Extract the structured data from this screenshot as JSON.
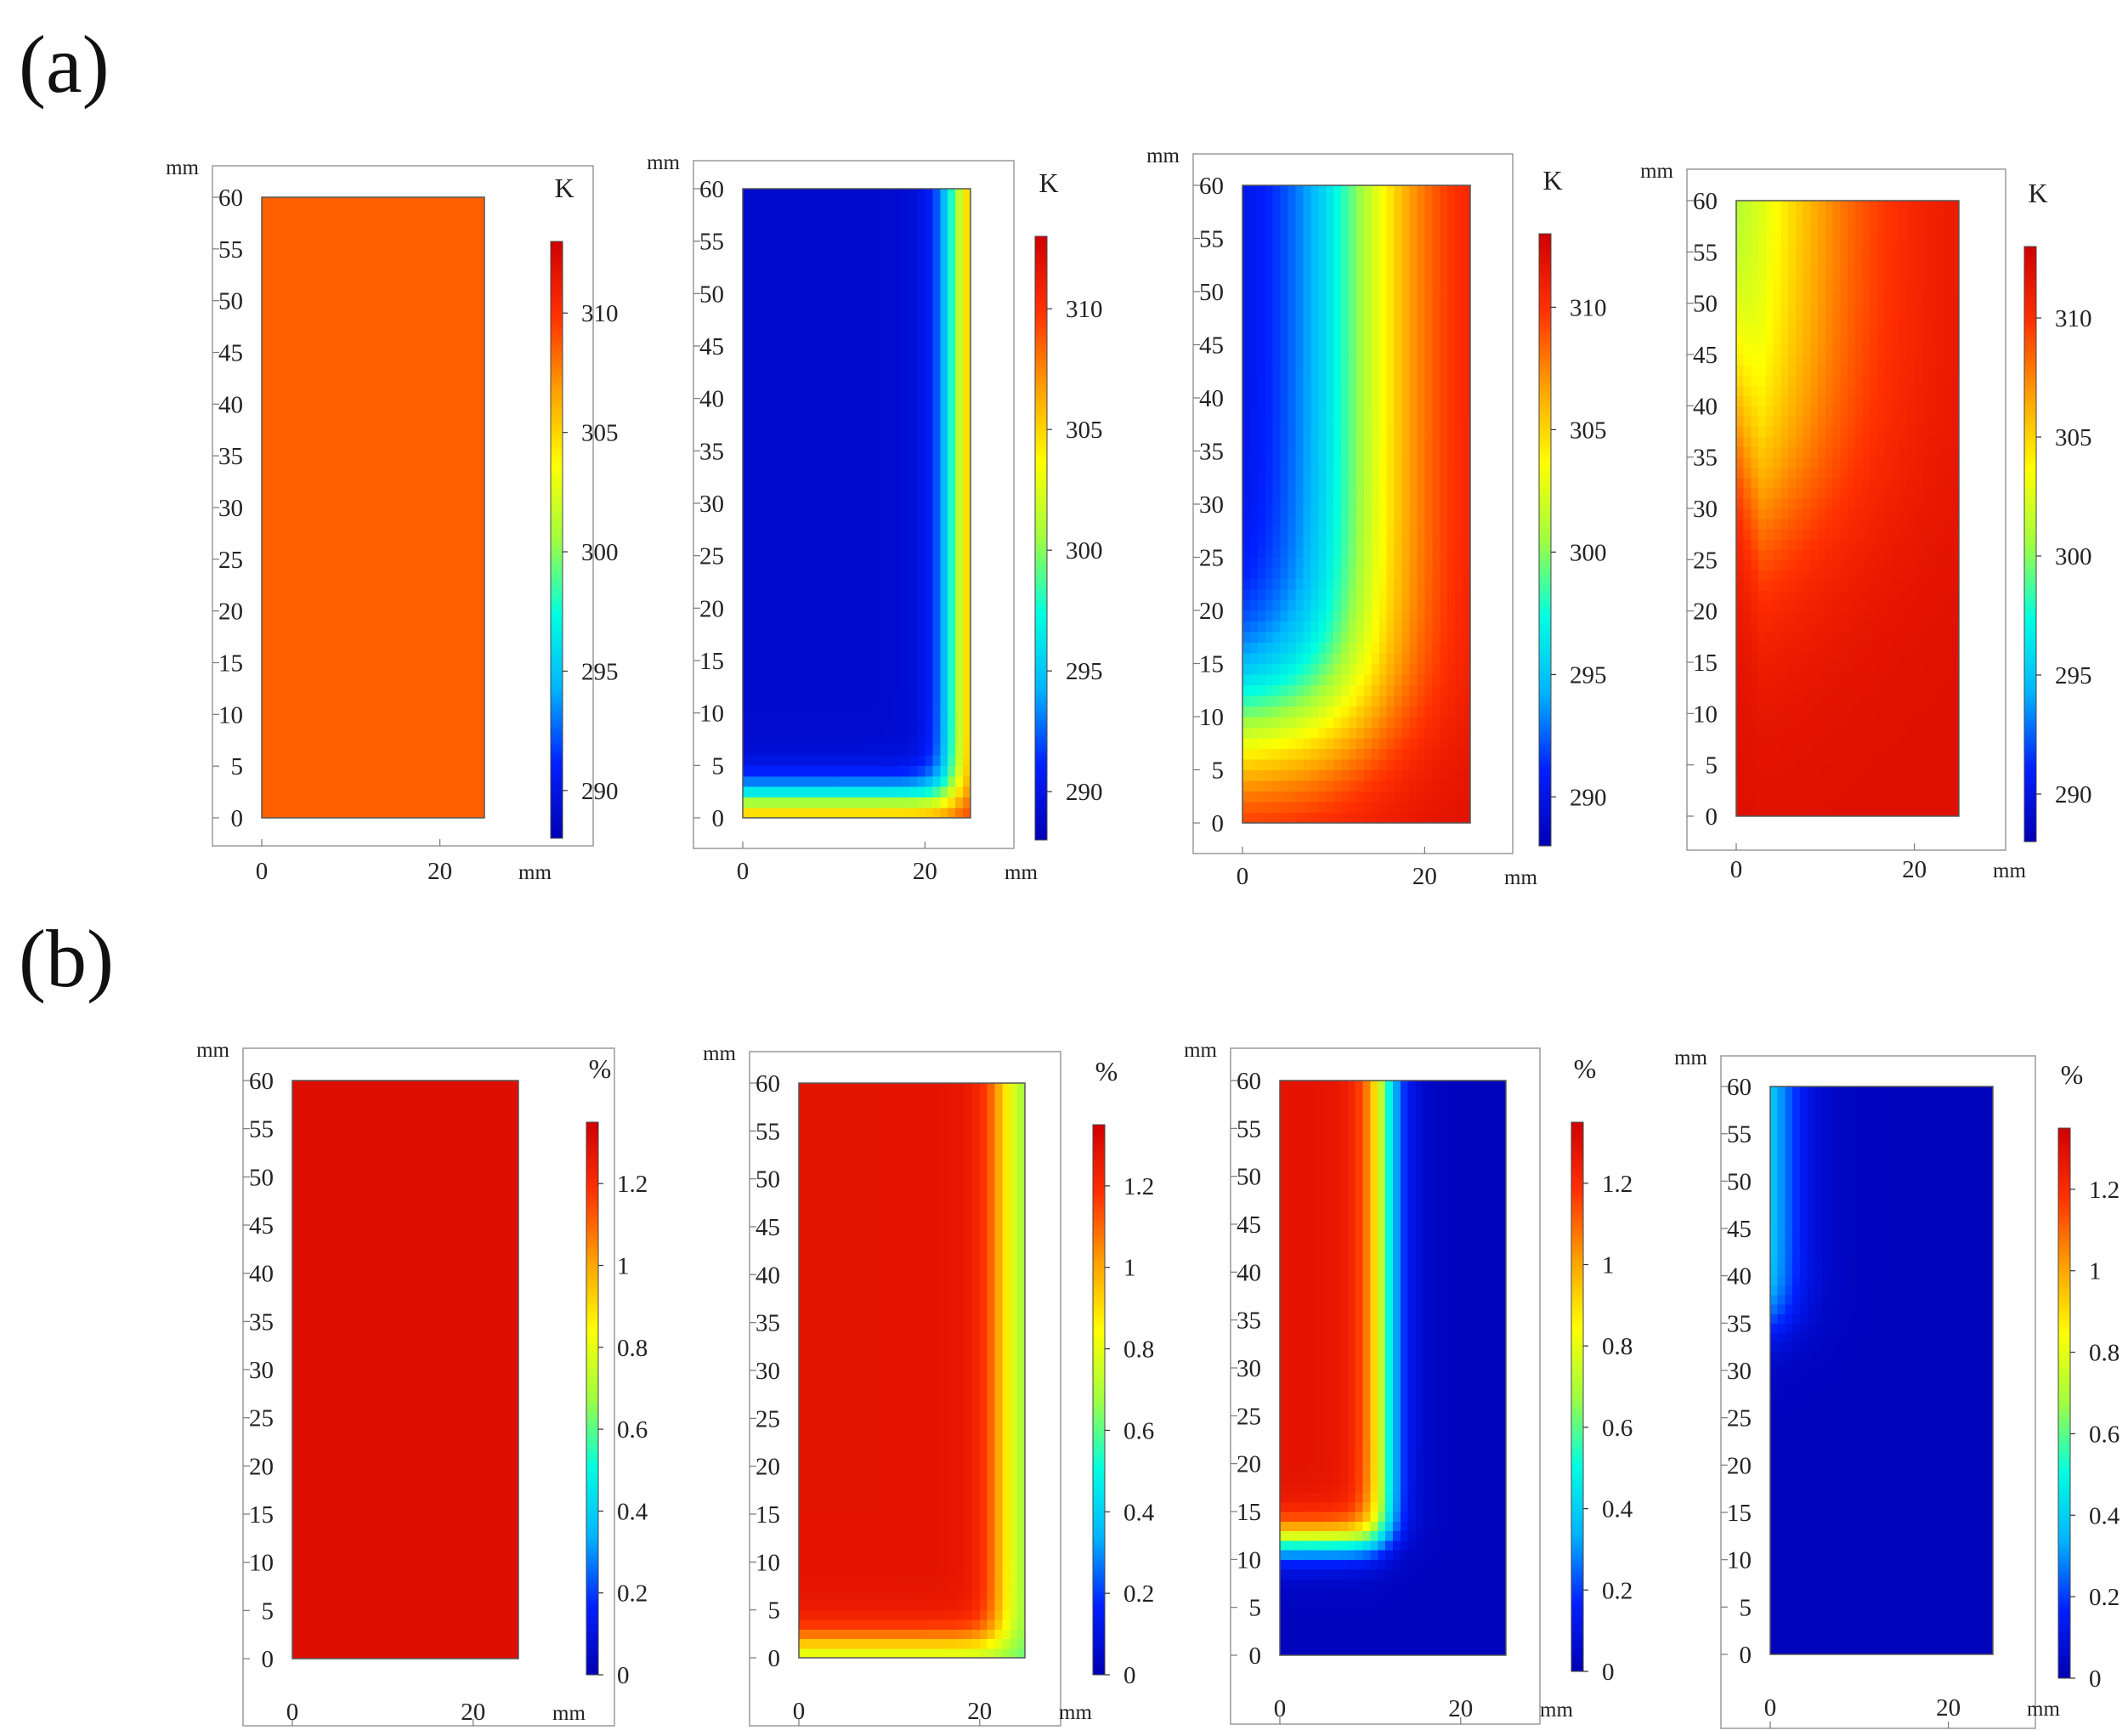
{
  "panel_labels": {
    "a": "(a)",
    "b": "(b)"
  },
  "colormap": [
    "#0000b4",
    "#0020ff",
    "#00b4ff",
    "#00ffe0",
    "#a0ff40",
    "#ffff00",
    "#ffa000",
    "#ff3000",
    "#d00000"
  ],
  "chart_data": [
    {
      "type": "heatmap",
      "row": "a",
      "quantity": "temperature",
      "x_unit": "mm",
      "y_unit": "mm",
      "colorbar_unit": "K",
      "xlim": [
        0,
        25
      ],
      "ylim": [
        0,
        60
      ],
      "x_ticks": [
        "0",
        "20"
      ],
      "y_ticks": [
        "0",
        "5",
        "10",
        "15",
        "20",
        "25",
        "30",
        "35",
        "40",
        "45",
        "50",
        "55",
        "60"
      ],
      "colorbar_range": [
        288,
        313
      ],
      "colorbar_ticks": [
        290,
        295,
        300,
        305,
        310
      ],
      "field": {
        "mode": "uniform",
        "value": 308.5
      }
    },
    {
      "type": "heatmap",
      "row": "a",
      "quantity": "temperature",
      "x_unit": "mm",
      "y_unit": "mm",
      "colorbar_unit": "K",
      "xlim": [
        0,
        25
      ],
      "ylim": [
        0,
        60
      ],
      "x_ticks": [
        "0",
        "20"
      ],
      "y_ticks": [
        "0",
        "5",
        "10",
        "15",
        "20",
        "25",
        "30",
        "35",
        "40",
        "45",
        "50",
        "55",
        "60"
      ],
      "colorbar_range": [
        288,
        313
      ],
      "colorbar_ticks": [
        290,
        295,
        300,
        305,
        310
      ],
      "field": {
        "mode": "front",
        "interior": 289,
        "boundary": 310,
        "front_x": 23.3,
        "front_y": 1.8,
        "width": 1.2,
        "rise": 0
      }
    },
    {
      "type": "heatmap",
      "row": "a",
      "quantity": "temperature",
      "x_unit": "mm",
      "y_unit": "mm",
      "colorbar_unit": "K",
      "xlim": [
        0,
        25
      ],
      "ylim": [
        0,
        60
      ],
      "x_ticks": [
        "0",
        "20"
      ],
      "y_ticks": [
        "0",
        "5",
        "10",
        "15",
        "20",
        "25",
        "30",
        "35",
        "40",
        "45",
        "50",
        "55",
        "60"
      ],
      "colorbar_range": [
        288,
        313
      ],
      "colorbar_ticks": [
        290,
        295,
        300,
        305,
        310
      ],
      "field": {
        "mode": "front",
        "interior": 289,
        "boundary": 312,
        "front_x": 13,
        "front_y": 9,
        "width": 4.5,
        "rise": 0
      }
    },
    {
      "type": "heatmap",
      "row": "a",
      "quantity": "temperature",
      "x_unit": "mm",
      "y_unit": "mm",
      "colorbar_unit": "K",
      "xlim": [
        0,
        25
      ],
      "ylim": [
        0,
        60
      ],
      "x_ticks": [
        "0",
        "20"
      ],
      "y_ticks": [
        "0",
        "5",
        "10",
        "15",
        "20",
        "25",
        "30",
        "35",
        "40",
        "45",
        "50",
        "55",
        "60"
      ],
      "colorbar_range": [
        288,
        313
      ],
      "colorbar_ticks": [
        290,
        295,
        300,
        305,
        310
      ],
      "field": {
        "mode": "front",
        "interior": 293,
        "boundary": 312,
        "front_x": 3,
        "front_y": 30,
        "width": 7,
        "rise": 10
      }
    },
    {
      "type": "heatmap",
      "row": "b",
      "quantity": "percent",
      "x_unit": "mm",
      "y_unit": "mm",
      "colorbar_unit": "%",
      "xlim": [
        0,
        25
      ],
      "ylim": [
        0,
        60
      ],
      "x_ticks": [
        "0",
        "20"
      ],
      "y_ticks": [
        "0",
        "5",
        "10",
        "15",
        "20",
        "25",
        "30",
        "35",
        "40",
        "45",
        "50",
        "55",
        "60"
      ],
      "colorbar_range": [
        0,
        1.35
      ],
      "colorbar_ticks": [
        0,
        0.2,
        0.4,
        0.6,
        0.8,
        1,
        1.2
      ],
      "field": {
        "mode": "uniform",
        "value": 1.3
      }
    },
    {
      "type": "heatmap",
      "row": "b",
      "quantity": "percent",
      "x_unit": "mm",
      "y_unit": "mm",
      "colorbar_unit": "%",
      "xlim": [
        0,
        25
      ],
      "ylim": [
        0,
        60
      ],
      "x_ticks": [
        "0",
        "20"
      ],
      "y_ticks": [
        "0",
        "5",
        "10",
        "15",
        "20",
        "25",
        "30",
        "35",
        "40",
        "45",
        "50",
        "55",
        "60"
      ],
      "colorbar_range": [
        0,
        1.35
      ],
      "colorbar_ticks": [
        0,
        0.2,
        0.4,
        0.6,
        0.8,
        1,
        1.2
      ],
      "field": {
        "mode": "front",
        "interior": 1.28,
        "boundary": 0.6,
        "front_x": 22.5,
        "front_y": 1.5,
        "width": 1.2,
        "rise": 0
      }
    },
    {
      "type": "heatmap",
      "row": "b",
      "quantity": "percent",
      "x_unit": "mm",
      "y_unit": "mm",
      "colorbar_unit": "%",
      "xlim": [
        0,
        25
      ],
      "ylim": [
        0,
        60
      ],
      "x_ticks": [
        "0",
        "20"
      ],
      "y_ticks": [
        "0",
        "5",
        "10",
        "15",
        "20",
        "25",
        "30",
        "35",
        "40",
        "45",
        "50",
        "55",
        "60"
      ],
      "colorbar_range": [
        0,
        1.35
      ],
      "colorbar_ticks": [
        0,
        0.2,
        0.4,
        0.6,
        0.8,
        1,
        1.2
      ],
      "field": {
        "mode": "front",
        "interior": 1.28,
        "boundary": 0.02,
        "front_x": 11.5,
        "front_y": 12,
        "width": 1.2,
        "rise": 0
      }
    },
    {
      "type": "heatmap",
      "row": "b",
      "quantity": "percent",
      "x_unit": "mm",
      "y_unit": "mm",
      "colorbar_unit": "%",
      "xlim": [
        0,
        25
      ],
      "ylim": [
        0,
        60
      ],
      "x_ticks": [
        "0",
        "20"
      ],
      "y_ticks": [
        "0",
        "5",
        "10",
        "15",
        "20",
        "25",
        "30",
        "35",
        "40",
        "45",
        "50",
        "55",
        "60"
      ],
      "colorbar_range": [
        0,
        1.35
      ],
      "colorbar_ticks": [
        0,
        0.2,
        0.4,
        0.6,
        0.8,
        1,
        1.2
      ],
      "field": {
        "mode": "front",
        "interior": 0.55,
        "boundary": 0.02,
        "front_x": 1.5,
        "front_y": 35,
        "width": 1.8,
        "rise": 0
      }
    }
  ]
}
